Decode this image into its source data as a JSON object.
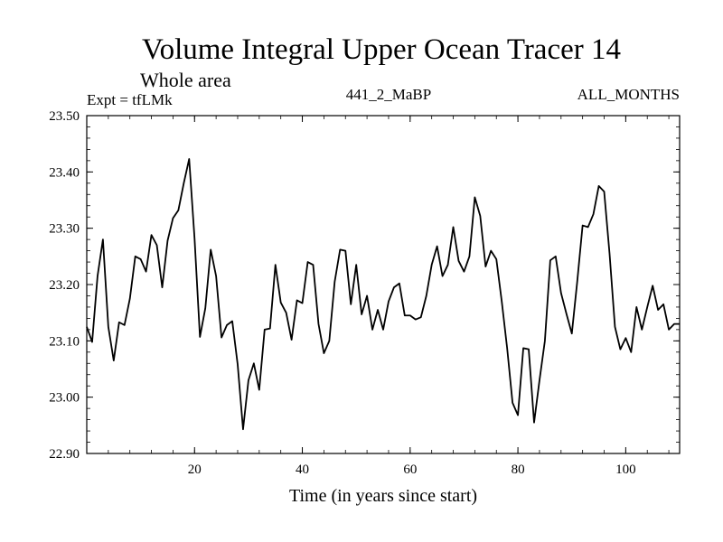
{
  "chart_data": {
    "type": "line",
    "title": "Volume Integral Upper Ocean Tracer 14",
    "subtitle": "Whole area",
    "experiment_label": "Expt = tfLMk",
    "run_label": "441_2_MaBP",
    "months_label": "ALL_MONTHS",
    "xlabel": "Time (in years since start)",
    "ylabel": "",
    "xlim": [
      0,
      110
    ],
    "ylim": [
      22.9,
      23.5
    ],
    "x_ticks": [
      20,
      40,
      60,
      80,
      100
    ],
    "x_tick_labels": [
      "20",
      "40",
      "60",
      "80",
      "100"
    ],
    "y_ticks": [
      22.9,
      23.0,
      23.1,
      23.2,
      23.3,
      23.4,
      23.5
    ],
    "y_tick_labels": [
      "22.90",
      "23.00",
      "23.10",
      "23.20",
      "23.30",
      "23.40",
      "23.50"
    ],
    "grid": false,
    "series": [
      {
        "name": "Tracer 14",
        "color": "#000000",
        "x": [
          0,
          1,
          2,
          3,
          4,
          5,
          6,
          7,
          8,
          9,
          10,
          11,
          12,
          13,
          14,
          15,
          16,
          17,
          18,
          19,
          20,
          21,
          22,
          23,
          24,
          25,
          26,
          27,
          28,
          29,
          30,
          31,
          32,
          33,
          34,
          35,
          36,
          37,
          38,
          39,
          40,
          41,
          42,
          43,
          44,
          45,
          46,
          47,
          48,
          49,
          50,
          51,
          52,
          53,
          54,
          55,
          56,
          57,
          58,
          59,
          60,
          61,
          62,
          63,
          64,
          65,
          66,
          67,
          68,
          69,
          70,
          71,
          72,
          73,
          74,
          75,
          76,
          77,
          78,
          79,
          80,
          81,
          82,
          83,
          84,
          85,
          86,
          87,
          88,
          89,
          90,
          91,
          92,
          93,
          94,
          95,
          96,
          97,
          98,
          99,
          100,
          101,
          102,
          103,
          104,
          105,
          106,
          107,
          108,
          109,
          110
        ],
        "values": [
          23.125,
          23.098,
          23.215,
          23.28,
          23.125,
          23.065,
          23.133,
          23.128,
          23.175,
          23.25,
          23.245,
          23.223,
          23.288,
          23.27,
          23.195,
          23.278,
          23.318,
          23.332,
          23.38,
          23.423,
          23.282,
          23.107,
          23.158,
          23.262,
          23.215,
          23.106,
          23.128,
          23.135,
          23.058,
          22.943,
          23.03,
          23.06,
          23.013,
          23.12,
          23.122,
          23.235,
          23.168,
          23.15,
          23.102,
          23.172,
          23.167,
          23.24,
          23.235,
          23.13,
          23.078,
          23.1,
          23.205,
          23.262,
          23.26,
          23.165,
          23.235,
          23.147,
          23.18,
          23.12,
          23.155,
          23.12,
          23.17,
          23.195,
          23.202,
          23.145,
          23.145,
          23.138,
          23.142,
          23.18,
          23.235,
          23.268,
          23.215,
          23.235,
          23.302,
          23.242,
          23.223,
          23.25,
          23.355,
          23.322,
          23.232,
          23.26,
          23.245,
          23.17,
          23.087,
          22.99,
          22.968,
          23.087,
          23.085,
          22.955,
          23.03,
          23.1,
          23.243,
          23.25,
          23.185,
          23.148,
          23.113,
          23.205,
          23.305,
          23.302,
          23.325,
          23.375,
          23.365,
          23.255,
          23.125,
          23.085,
          23.105,
          23.08,
          23.16,
          23.12,
          23.16,
          23.198,
          23.155,
          23.165,
          23.12,
          23.13,
          23.13
        ]
      }
    ]
  }
}
